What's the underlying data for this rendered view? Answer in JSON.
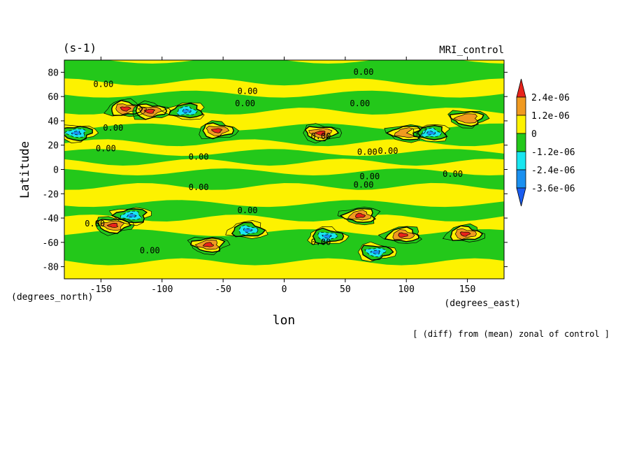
{
  "chart_data": {
    "type": "heatmap",
    "units_label": "(s-1)",
    "title": "MRI_control",
    "xlabel": "lon",
    "ylabel": "Latitude",
    "x_units": "(degrees_east)",
    "y_units": "(degrees_north)",
    "footnote": "[ (diff) from (mean) zonal of control ]",
    "xlim": [
      -180,
      180
    ],
    "ylim": [
      -90,
      90
    ],
    "x_ticks": [
      -150,
      -100,
      -50,
      0,
      50,
      100,
      150
    ],
    "x_tick_labels": [
      "-150",
      "-100",
      "-50",
      "0",
      "50",
      "100",
      "150"
    ],
    "y_ticks": [
      80,
      60,
      40,
      20,
      0,
      -20,
      -40,
      -60,
      -80
    ],
    "y_tick_labels": [
      "80",
      "60",
      "40",
      "20",
      "0",
      "-20",
      "-40",
      "-60",
      "-80"
    ],
    "contour_label": "0.00",
    "levels": [
      -3.6e-06,
      -2.4e-06,
      -1.2e-06,
      0,
      1.2e-06,
      2.4e-06
    ],
    "colorbar": {
      "labels": [
        "2.4e-06",
        "1.2e-06",
        "0",
        "-1.2e-06",
        "-2.4e-06",
        "-3.6e-06"
      ],
      "colors_top_to_bottom": [
        "#e8231b",
        "#f09a20",
        "#fdf200",
        "#23c81a",
        "#19e6f0",
        "#1a90f0",
        "#1a5cf0"
      ]
    },
    "anomaly_centres": [
      {
        "lon": -130,
        "lat": 50,
        "sign": "pos"
      },
      {
        "lon": -110,
        "lat": 48,
        "sign": "pos"
      },
      {
        "lon": -140,
        "lat": -46,
        "sign": "pos"
      },
      {
        "lon": -62,
        "lat": -62,
        "sign": "pos"
      },
      {
        "lon": 62,
        "lat": -38,
        "sign": "pos"
      },
      {
        "lon": 97,
        "lat": -54,
        "sign": "pos"
      },
      {
        "lon": 148,
        "lat": -53,
        "sign": "pos"
      },
      {
        "lon": -55,
        "lat": 32,
        "sign": "pos"
      },
      {
        "lon": 30,
        "lat": 30,
        "sign": "pos"
      },
      {
        "lon": 150,
        "lat": 42,
        "sign": "pos"
      },
      {
        "lon": 100,
        "lat": 30,
        "sign": "pos"
      },
      {
        "lon": -80,
        "lat": 48,
        "sign": "neg"
      },
      {
        "lon": -30,
        "lat": -50,
        "sign": "neg"
      },
      {
        "lon": 35,
        "lat": -55,
        "sign": "neg"
      },
      {
        "lon": 75,
        "lat": -68,
        "sign": "neg"
      },
      {
        "lon": -170,
        "lat": 30,
        "sign": "neg"
      },
      {
        "lon": -125,
        "lat": -38,
        "sign": "neg"
      },
      {
        "lon": 120,
        "lat": 30,
        "sign": "neg"
      }
    ]
  }
}
